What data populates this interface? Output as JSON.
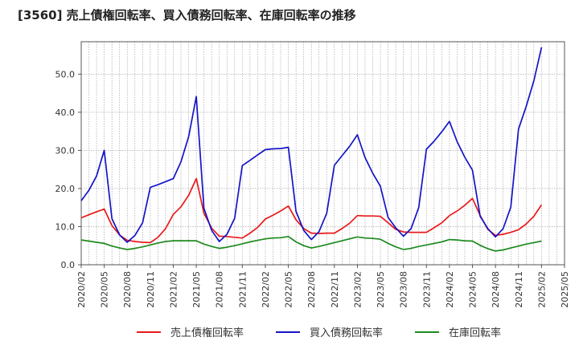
{
  "chart_data": {
    "type": "line",
    "title": "[3560]  売上債権回転率、買入債務回転率、在庫回転率の推移",
    "xlabel": "",
    "ylabel": "",
    "ylim": [
      0,
      58.5
    ],
    "yticks": [
      "0.0",
      "10.0",
      "20.0",
      "30.0",
      "40.0",
      "50.0"
    ],
    "ytick_values": [
      0,
      10,
      20,
      30,
      40,
      50
    ],
    "xticks": [
      "2020/02",
      "2020/05",
      "2020/08",
      "2020/11",
      "2021/02",
      "2021/05",
      "2021/08",
      "2021/11",
      "2022/02",
      "2022/05",
      "2022/08",
      "2022/11",
      "2023/02",
      "2023/05",
      "2023/08",
      "2023/11",
      "2024/02",
      "2024/05",
      "2024/08",
      "2024/11",
      "2025/02",
      "2025/05"
    ],
    "grid": true,
    "legend_position": "bottom",
    "x": [
      "2020/02",
      "2020/03",
      "2020/04",
      "2020/05",
      "2020/06",
      "2020/07",
      "2020/08",
      "2020/09",
      "2020/10",
      "2020/11",
      "2020/12",
      "2021/01",
      "2021/02",
      "2021/03",
      "2021/04",
      "2021/05",
      "2021/06",
      "2021/07",
      "2021/08",
      "2021/09",
      "2021/10",
      "2021/11",
      "2021/12",
      "2022/01",
      "2022/02",
      "2022/03",
      "2022/04",
      "2022/05",
      "2022/06",
      "2022/07",
      "2022/08",
      "2022/09",
      "2022/10",
      "2022/11",
      "2022/12",
      "2023/01",
      "2023/02",
      "2023/03",
      "2023/04",
      "2023/05",
      "2023/06",
      "2023/07",
      "2023/08",
      "2023/09",
      "2023/10",
      "2023/11",
      "2023/12",
      "2024/01",
      "2024/02",
      "2024/03",
      "2024/04",
      "2024/05",
      "2024/06",
      "2024/07",
      "2024/08",
      "2024/09",
      "2024/10",
      "2024/11",
      "2024/12",
      "2025/01",
      "2025/02"
    ],
    "series": [
      {
        "name": "売上債権回転率",
        "color": "#e8191a",
        "values": [
          12.3,
          13.1,
          13.9,
          14.6,
          10.3,
          7.8,
          6.4,
          6.1,
          5.9,
          5.8,
          7.2,
          9.5,
          13.2,
          15.2,
          18.2,
          22.6,
          13.5,
          9.6,
          7.5,
          7.4,
          7.2,
          7.0,
          8.3,
          9.8,
          12.0,
          13.0,
          14.1,
          15.4,
          11.8,
          9.5,
          8.3,
          8.2,
          8.3,
          8.3,
          9.5,
          10.9,
          12.9,
          12.8,
          12.8,
          12.7,
          11.0,
          9.3,
          8.6,
          8.5,
          8.5,
          8.5,
          9.7,
          11.0,
          12.9,
          14.1,
          15.6,
          17.4,
          12.9,
          9.3,
          7.7,
          8.0,
          8.5,
          9.2,
          10.7,
          12.7,
          15.7
        ]
      },
      {
        "name": "買入債務回転率",
        "color": "#1414c8",
        "values": [
          16.8,
          19.5,
          23.3,
          30.0,
          12.1,
          7.8,
          5.9,
          7.7,
          11.0,
          20.3,
          21.0,
          21.8,
          22.6,
          27.0,
          33.6,
          44.1,
          14.8,
          9.0,
          6.1,
          8.0,
          12.2,
          26.0,
          27.4,
          28.8,
          30.2,
          30.4,
          30.5,
          30.8,
          14.0,
          9.0,
          6.6,
          8.7,
          13.5,
          26.1,
          28.6,
          31.1,
          34.1,
          28.1,
          24.0,
          20.6,
          12.4,
          9.7,
          7.5,
          9.5,
          15.0,
          30.3,
          32.4,
          34.9,
          37.6,
          32.3,
          28.2,
          24.8,
          12.7,
          9.5,
          7.3,
          9.5,
          15.1,
          35.6,
          41.5,
          48.2,
          57.0
        ]
      },
      {
        "name": "在庫回転率",
        "color": "#1e8a1e",
        "values": [
          6.5,
          6.2,
          5.9,
          5.6,
          4.9,
          4.4,
          4.0,
          4.3,
          4.7,
          5.2,
          5.7,
          6.1,
          6.3,
          6.3,
          6.3,
          6.3,
          5.4,
          4.8,
          4.3,
          4.6,
          5.0,
          5.5,
          6.0,
          6.4,
          6.8,
          7.0,
          7.1,
          7.4,
          6.0,
          5.0,
          4.4,
          4.8,
          5.3,
          5.8,
          6.3,
          6.8,
          7.3,
          7.0,
          6.9,
          6.7,
          5.6,
          4.7,
          4.0,
          4.3,
          4.8,
          5.2,
          5.6,
          6.0,
          6.6,
          6.5,
          6.3,
          6.2,
          5.1,
          4.2,
          3.6,
          3.9,
          4.4,
          4.9,
          5.4,
          5.8,
          6.2
        ]
      }
    ]
  }
}
